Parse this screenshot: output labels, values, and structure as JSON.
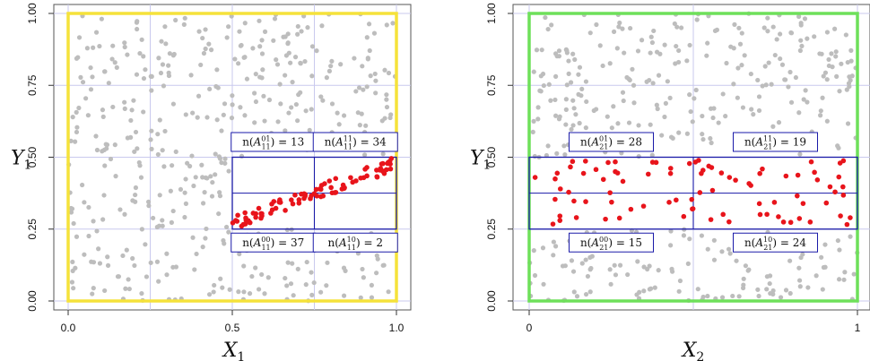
{
  "chart_data": [
    {
      "type": "scatter",
      "panel": "left",
      "xlabel": "X",
      "xlabel_sub": "1",
      "ylabel": "Y",
      "ylabel_sub": "1",
      "xlim": [
        0,
        1
      ],
      "ylim": [
        0,
        1
      ],
      "x_ticks": [
        0.0,
        0.5,
        1.0
      ],
      "x_tick_labels": [
        "0.0",
        "0.5",
        "1.0"
      ],
      "y_ticks": [
        0.0,
        0.25,
        0.5,
        0.75,
        1.0
      ],
      "y_tick_labels": [
        "0.00",
        "0.25",
        "0.50",
        "0.75",
        "1.00"
      ],
      "grid": true,
      "frame_color": "#f5e23a",
      "background_points_color": "#bdbdbd",
      "highlight_color": "#e8141b",
      "box_color": "#1a1aa8",
      "region": {
        "x": [
          0.5,
          1.0
        ],
        "y": [
          0.25,
          0.5
        ],
        "x_split": 0.75,
        "y_split": 0.375
      },
      "cell_counts": [
        {
          "label": "n(A₁₁⁰¹) = 13",
          "index": "11",
          "superscript": "01",
          "value": 13,
          "position": "top-left"
        },
        {
          "label": "n(A₁₁¹¹) = 34",
          "index": "11",
          "superscript": "11",
          "value": 34,
          "position": "top-right"
        },
        {
          "label": "n(A₁₁⁰⁰) = 37",
          "index": "11",
          "superscript": "00",
          "value": 37,
          "position": "bottom-left"
        },
        {
          "label": "n(A₁₁¹⁰) = 2",
          "index": "11",
          "superscript": "10",
          "value": 2,
          "position": "bottom-right"
        }
      ],
      "highlight_relation": "increasing (y = 0.25 + 0.25x approx.)"
    },
    {
      "type": "scatter",
      "panel": "right",
      "xlabel": "X",
      "xlabel_sub": "2",
      "ylabel": "Y",
      "ylabel_sub": "1",
      "xlim": [
        0,
        1
      ],
      "ylim": [
        0,
        1
      ],
      "x_ticks": [
        0,
        1
      ],
      "x_tick_labels": [
        "0",
        "1"
      ],
      "y_ticks": [
        0.0,
        0.25,
        0.5,
        0.75,
        1.0
      ],
      "y_tick_labels": [
        "0.00",
        "0.25",
        "0.50",
        "0.75",
        "1.00"
      ],
      "grid": true,
      "frame_color": "#6ee05a",
      "background_points_color": "#bdbdbd",
      "highlight_color": "#e8141b",
      "box_color": "#1a1aa8",
      "region": {
        "x": [
          0.0,
          1.0
        ],
        "y": [
          0.25,
          0.5
        ],
        "x_split": 0.5,
        "y_split": 0.375
      },
      "cell_counts": [
        {
          "label": "n(A₂₁⁰¹) = 28",
          "index": "21",
          "superscript": "01",
          "value": 28,
          "position": "top-left"
        },
        {
          "label": "n(A₂₁¹¹) = 19",
          "index": "21",
          "superscript": "11",
          "value": 19,
          "position": "top-right"
        },
        {
          "label": "n(A₂₁⁰⁰) = 15",
          "index": "21",
          "superscript": "00",
          "value": 15,
          "position": "bottom-left"
        },
        {
          "label": "n(A₂₁¹⁰) = 24",
          "index": "21",
          "superscript": "10",
          "value": 24,
          "position": "bottom-right"
        }
      ],
      "highlight_relation": "independent (uniform within y-band)"
    }
  ]
}
